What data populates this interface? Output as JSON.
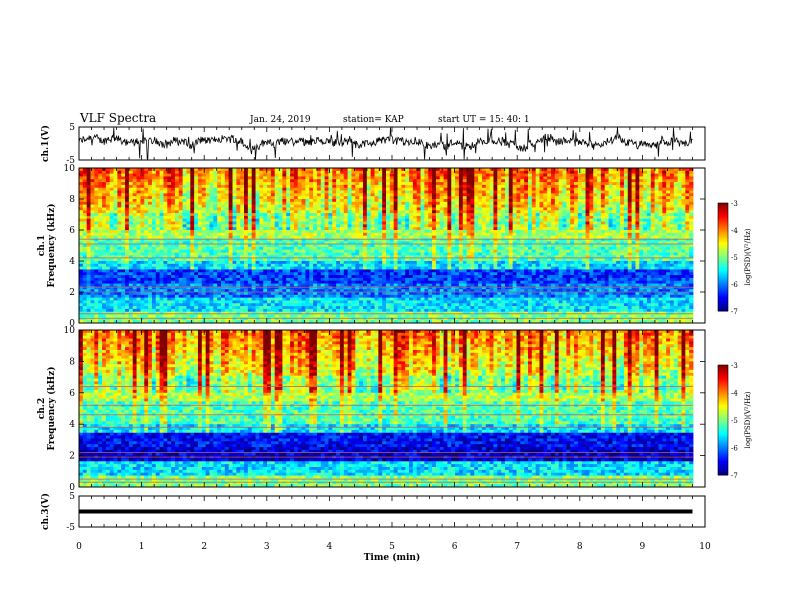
{
  "header": {
    "title": "VLF Spectra",
    "date": "Jan. 24, 2019",
    "station": "station= KAP",
    "start": "start UT = 15: 40: 1"
  },
  "chart_data": [
    {
      "id": "ch1-waveform",
      "type": "line",
      "ylabel": "ch.1(V)",
      "ylim": [
        -5,
        5
      ],
      "yticks": [
        "5",
        "-5"
      ],
      "xlim": [
        0,
        10
      ]
    },
    {
      "id": "ch1-spectrogram",
      "type": "heatmap",
      "ylabel": "ch.1\nFrequency (kHz)",
      "ylim": [
        0,
        10
      ],
      "yticks": [
        "0",
        "2",
        "4",
        "6",
        "8",
        "10"
      ],
      "xlim": [
        0,
        10
      ],
      "colorbar": {
        "label": "log(PSD)(V²/Hz)",
        "ticks": [
          "-3",
          "-4",
          "-5",
          "-6",
          "-7"
        ],
        "range": [
          -7,
          -3
        ]
      }
    },
    {
      "id": "ch2-spectrogram",
      "type": "heatmap",
      "ylabel": "ch.2\nFrequency (kHz)",
      "ylim": [
        0,
        10
      ],
      "yticks": [
        "0",
        "2",
        "4",
        "6",
        "8",
        "10"
      ],
      "xlim": [
        0,
        10
      ],
      "colorbar": {
        "label": "log(PSD)(V²/Hz)",
        "ticks": [
          "-3",
          "-4",
          "-5",
          "-6",
          "-7"
        ],
        "range": [
          -7,
          -3
        ]
      }
    },
    {
      "id": "ch3-waveform",
      "type": "line",
      "ylabel": "ch.3(V)",
      "ylim": [
        -5,
        5
      ],
      "yticks": [
        "5",
        "-5"
      ],
      "xlim": [
        0,
        10
      ],
      "x": [
        0,
        9.8
      ],
      "y": [
        0,
        0
      ]
    }
  ],
  "xaxis": {
    "label": "Time (min)",
    "ticks": [
      "0",
      "1",
      "2",
      "3",
      "4",
      "5",
      "6",
      "7",
      "8",
      "9",
      "10"
    ]
  }
}
